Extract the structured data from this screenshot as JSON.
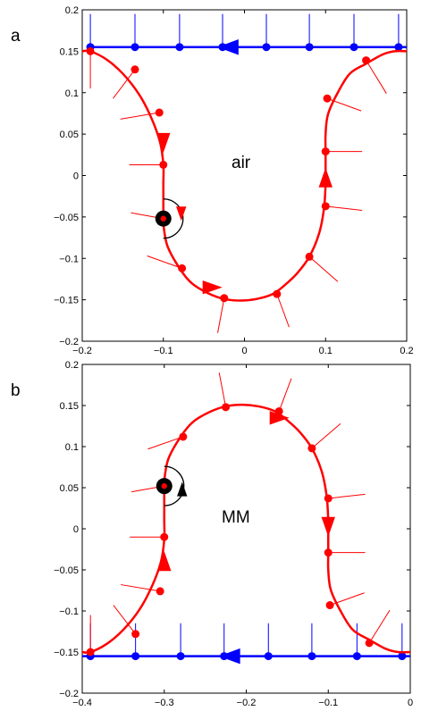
{
  "colors": {
    "curve": "#ff0000",
    "interface": "#0000ff",
    "point_marker": "#000000",
    "axes": "#000000"
  },
  "chart_data": [
    {
      "type": "line",
      "panel_label": "a",
      "region_label": "air",
      "xlim": [
        -0.2,
        0.2
      ],
      "ylim": [
        -0.2,
        0.2
      ],
      "xticks": [
        -0.2,
        -0.1,
        0,
        0.1,
        0.2
      ],
      "yticks": [
        -0.2,
        -0.15,
        -0.1,
        -0.05,
        0,
        0.05,
        0.1,
        0.15,
        0.2
      ],
      "xtick_labels": [
        "−0.2",
        "−0.1",
        "0",
        "0.1",
        "0.2"
      ],
      "ytick_labels": [
        "−0.2",
        "−0.15",
        "−0.1",
        "−0.05",
        "0",
        "0.05",
        "0.1",
        "0.15",
        "0.2"
      ],
      "grid": false,
      "interface_line": {
        "y": 0.155,
        "x_from": -0.19,
        "x_to": 0.2,
        "points_x": [
          -0.19,
          -0.135,
          -0.08,
          -0.027,
          0.027,
          0.08,
          0.135,
          0.19
        ],
        "normal_length": 0.04,
        "arrow_at_x": -0.02,
        "arrow_direction": "left"
      },
      "curve": {
        "x": [
          -0.2,
          -0.19,
          -0.17,
          -0.15,
          -0.13,
          -0.115,
          -0.104,
          -0.1,
          -0.1,
          -0.1,
          -0.1,
          -0.1,
          -0.095,
          -0.08,
          -0.065,
          -0.045,
          -0.025,
          -0.005,
          0.015,
          0.035,
          0.05,
          0.065,
          0.08,
          0.092,
          0.098,
          0.1,
          0.1,
          0.1,
          0.1,
          0.103,
          0.115,
          0.13,
          0.15,
          0.17,
          0.185,
          0.2
        ],
        "y": [
          0.15,
          0.15,
          0.14,
          0.123,
          0.098,
          0.07,
          0.04,
          0.013,
          -0.01,
          -0.03,
          -0.045,
          -0.058,
          -0.085,
          -0.112,
          -0.13,
          -0.142,
          -0.149,
          -0.151,
          -0.149,
          -0.143,
          -0.132,
          -0.118,
          -0.098,
          -0.07,
          -0.04,
          -0.01,
          0.01,
          0.03,
          0.05,
          0.074,
          0.1,
          0.123,
          0.135,
          0.146,
          0.15,
          0.15
        ],
        "markers_x": [
          -0.19,
          -0.135,
          -0.105,
          -0.1,
          -0.1,
          -0.077,
          -0.025,
          0.04,
          0.08,
          0.1,
          0.1,
          0.102,
          0.15
        ],
        "markers_y": [
          0.15,
          0.128,
          0.076,
          0.013,
          -0.052,
          -0.112,
          -0.148,
          -0.143,
          -0.098,
          -0.037,
          0.029,
          0.093,
          0.139
        ],
        "normals": [
          {
            "x": -0.19,
            "y": 0.15,
            "dx": 0,
            "dy": -0.045
          },
          {
            "x": -0.135,
            "y": 0.128,
            "dx": -0.027,
            "dy": -0.035
          },
          {
            "x": -0.105,
            "y": 0.076,
            "dx": -0.048,
            "dy": -0.008
          },
          {
            "x": -0.1,
            "y": 0.013,
            "dx": -0.042,
            "dy": 0
          },
          {
            "x": -0.1,
            "y": -0.052,
            "dx": -0.04,
            "dy": 0.007
          },
          {
            "x": -0.077,
            "y": -0.112,
            "dx": -0.043,
            "dy": 0.015
          },
          {
            "x": -0.025,
            "y": -0.148,
            "dx": -0.008,
            "dy": -0.042
          },
          {
            "x": 0.04,
            "y": -0.143,
            "dx": 0.015,
            "dy": -0.04
          },
          {
            "x": 0.08,
            "y": -0.098,
            "dx": 0.035,
            "dy": -0.03
          },
          {
            "x": 0.1,
            "y": -0.037,
            "dx": 0.045,
            "dy": -0.005
          },
          {
            "x": 0.1,
            "y": 0.029,
            "dx": 0.045,
            "dy": 0
          },
          {
            "x": 0.102,
            "y": 0.093,
            "dx": 0.042,
            "dy": -0.015
          },
          {
            "x": 0.15,
            "y": 0.139,
            "dx": 0.025,
            "dy": -0.04
          }
        ],
        "arrows": [
          {
            "x": -0.1,
            "y": 0.04,
            "dir": "down"
          },
          {
            "x": -0.04,
            "y": -0.135,
            "dir": "right"
          },
          {
            "x": 0.1,
            "y": -0.003,
            "dir": "up"
          }
        ]
      },
      "special_point": {
        "x": -0.1,
        "y": -0.052,
        "arc_direction": "down"
      }
    },
    {
      "type": "line",
      "panel_label": "b",
      "region_label": "MM",
      "xlim": [
        -0.4,
        0
      ],
      "ylim": [
        -0.2,
        0.2
      ],
      "xticks": [
        -0.4,
        -0.3,
        -0.2,
        -0.1,
        0
      ],
      "yticks": [
        -0.2,
        -0.15,
        -0.1,
        -0.05,
        0,
        0.05,
        0.1,
        0.15,
        0.2
      ],
      "xtick_labels": [
        "−0.4",
        "−0.3",
        "−0.2",
        "−0.1",
        "0"
      ],
      "ytick_labels": [
        "−0.2",
        "−0.15",
        "−0.1",
        "−0.05",
        "0",
        "0.05",
        "0.1",
        "0.15",
        "0.2"
      ],
      "grid": false,
      "interface_line": {
        "y": -0.155,
        "x_from": -0.4,
        "x_to": 0,
        "points_x": [
          -0.39,
          -0.335,
          -0.28,
          -0.227,
          -0.173,
          -0.12,
          -0.065,
          -0.01
        ],
        "normal_length": 0.04,
        "arrow_at_x": -0.22,
        "arrow_direction": "left"
      },
      "curve": {
        "x": [
          -0.4,
          -0.39,
          -0.37,
          -0.35,
          -0.33,
          -0.315,
          -0.304,
          -0.3,
          -0.3,
          -0.3,
          -0.3,
          -0.3,
          -0.295,
          -0.28,
          -0.265,
          -0.245,
          -0.225,
          -0.205,
          -0.185,
          -0.165,
          -0.15,
          -0.135,
          -0.12,
          -0.108,
          -0.102,
          -0.1,
          -0.1,
          -0.1,
          -0.1,
          -0.097,
          -0.085,
          -0.07,
          -0.05,
          -0.03,
          -0.015,
          0
        ],
        "y": [
          -0.15,
          -0.15,
          -0.14,
          -0.123,
          -0.098,
          -0.07,
          -0.04,
          -0.013,
          0.01,
          0.03,
          0.045,
          0.058,
          0.085,
          0.112,
          0.13,
          0.142,
          0.149,
          0.151,
          0.149,
          0.143,
          0.132,
          0.118,
          0.098,
          0.07,
          0.04,
          0.01,
          -0.01,
          -0.03,
          -0.05,
          -0.074,
          -0.1,
          -0.123,
          -0.135,
          -0.146,
          -0.15,
          -0.15
        ],
        "markers_x": [
          -0.39,
          -0.335,
          -0.305,
          -0.3,
          -0.3,
          -0.277,
          -0.225,
          -0.16,
          -0.12,
          -0.1,
          -0.1,
          -0.098,
          -0.05
        ],
        "markers_y": [
          -0.15,
          -0.128,
          -0.076,
          -0.01,
          0.052,
          0.112,
          0.148,
          0.143,
          0.098,
          0.037,
          -0.029,
          -0.093,
          -0.139
        ],
        "normals": [
          {
            "x": -0.39,
            "y": -0.15,
            "dx": 0,
            "dy": 0.045
          },
          {
            "x": -0.335,
            "y": -0.128,
            "dx": -0.027,
            "dy": 0.035
          },
          {
            "x": -0.305,
            "y": -0.076,
            "dx": -0.048,
            "dy": 0.008
          },
          {
            "x": -0.3,
            "y": -0.01,
            "dx": -0.042,
            "dy": 0
          },
          {
            "x": -0.3,
            "y": 0.052,
            "dx": -0.04,
            "dy": -0.007
          },
          {
            "x": -0.277,
            "y": 0.112,
            "dx": -0.043,
            "dy": -0.015
          },
          {
            "x": -0.225,
            "y": 0.148,
            "dx": -0.008,
            "dy": 0.042
          },
          {
            "x": -0.16,
            "y": 0.143,
            "dx": 0.015,
            "dy": 0.04
          },
          {
            "x": -0.12,
            "y": 0.098,
            "dx": 0.035,
            "dy": 0.03
          },
          {
            "x": -0.1,
            "y": 0.037,
            "dx": 0.045,
            "dy": 0.005
          },
          {
            "x": -0.1,
            "y": -0.029,
            "dx": 0.045,
            "dy": 0
          },
          {
            "x": -0.098,
            "y": -0.093,
            "dx": 0.042,
            "dy": 0.015
          },
          {
            "x": -0.05,
            "y": -0.139,
            "dx": 0.025,
            "dy": 0.04
          }
        ],
        "arrows": [
          {
            "x": -0.3,
            "y": -0.04,
            "dir": "up"
          },
          {
            "x": -0.16,
            "y": 0.135,
            "dir": "right"
          },
          {
            "x": -0.1,
            "y": 0.003,
            "dir": "down"
          }
        ]
      },
      "special_point": {
        "x": -0.3,
        "y": 0.052,
        "arc_direction": "up"
      }
    }
  ]
}
